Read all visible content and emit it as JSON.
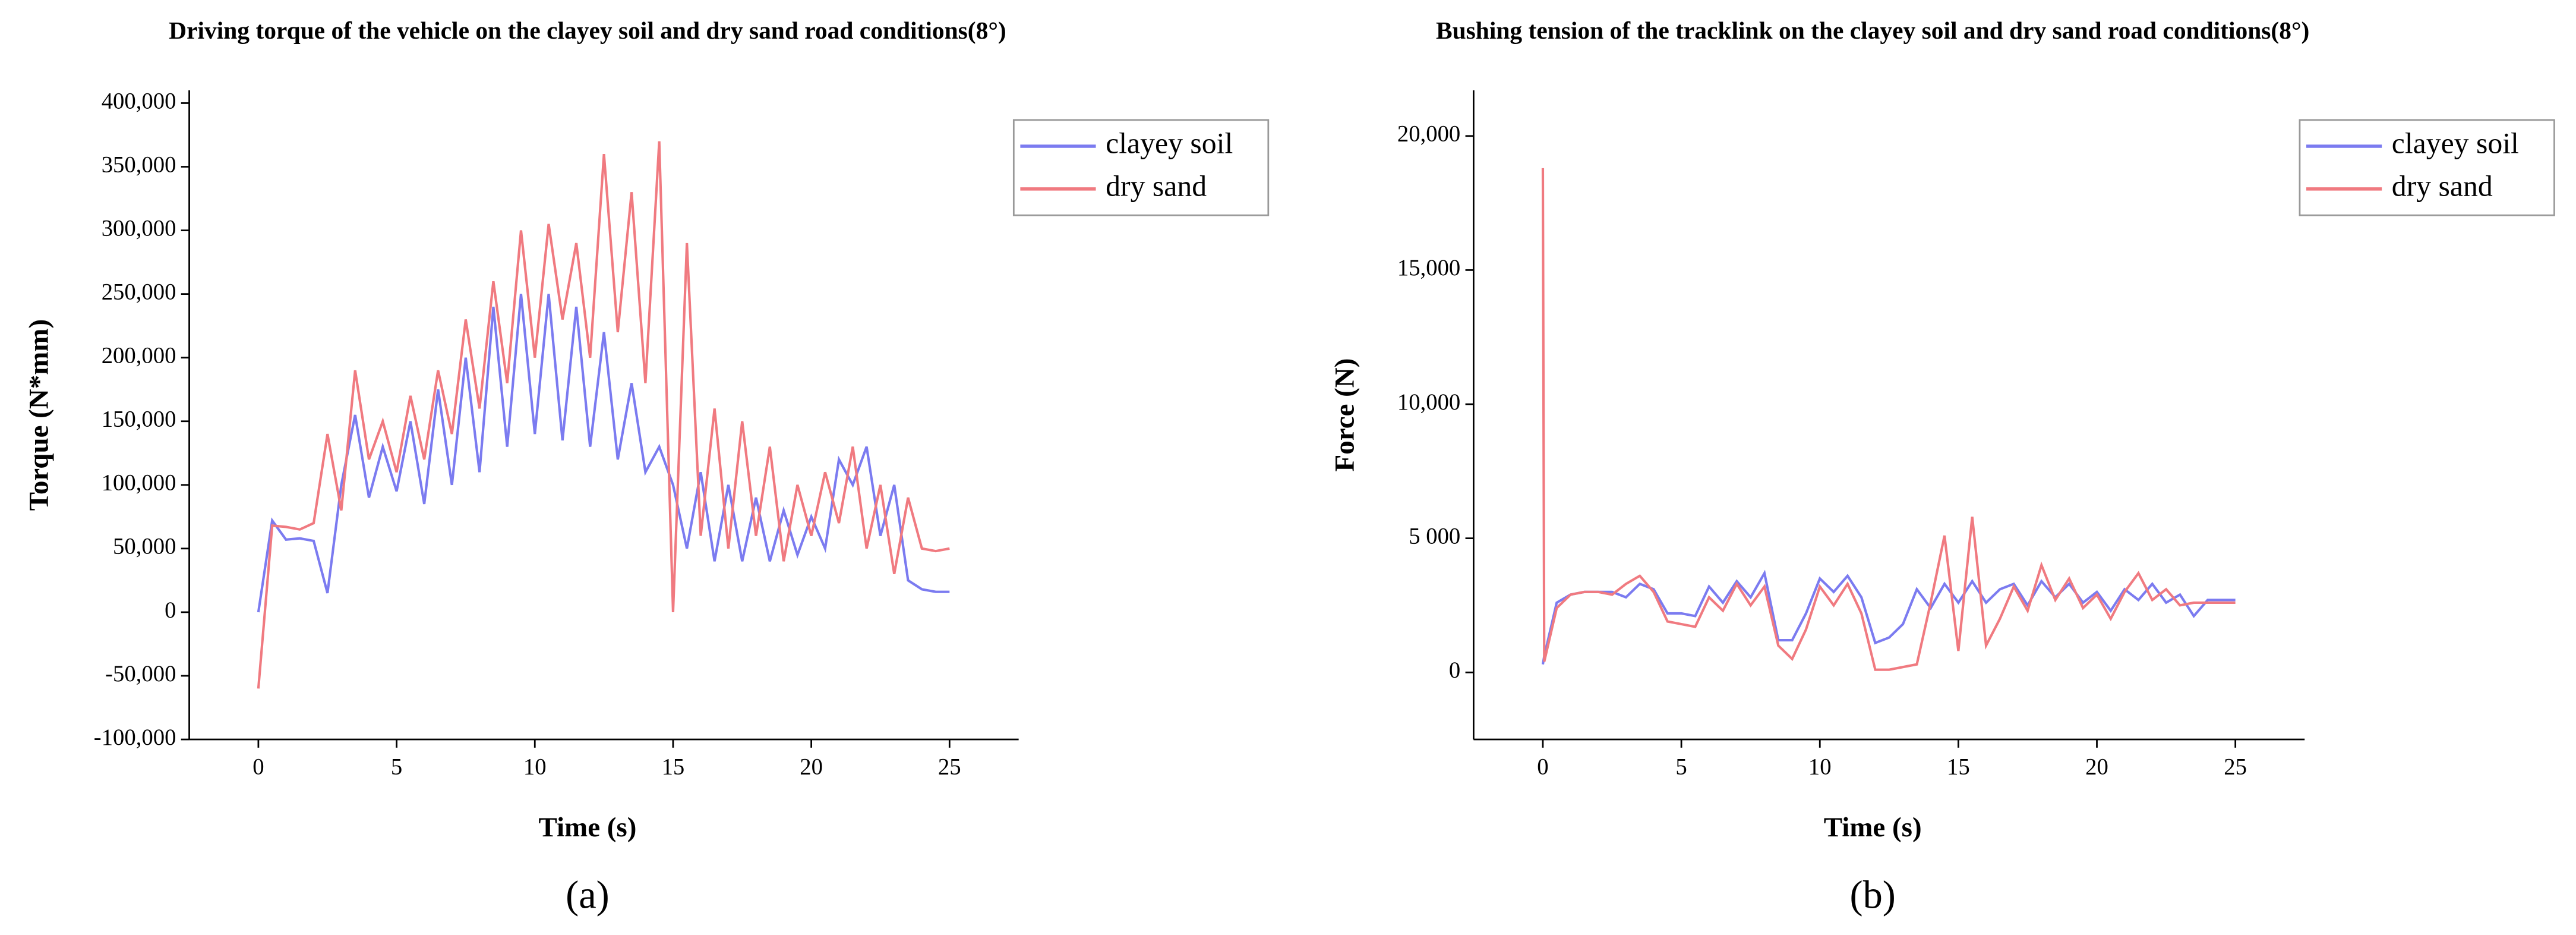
{
  "chart_data": [
    {
      "type": "line",
      "title": "Driving torque of the vehicle on the clayey soil and dry sand road conditions(8°)",
      "xlabel": "Time (s)",
      "ylabel": "Torque (N*mm)",
      "caption": "(a)",
      "legend": "upper right",
      "x": [
        0,
        0.5,
        1,
        1.5,
        2,
        2.5,
        3,
        3.5,
        4,
        4.5,
        5,
        5.5,
        6,
        6.5,
        7,
        7.5,
        8,
        8.5,
        9,
        9.5,
        10,
        10.5,
        11,
        11.5,
        12,
        12.5,
        13,
        13.5,
        14,
        14.5,
        15,
        15.5,
        16,
        16.5,
        17,
        17.5,
        18,
        18.5,
        19,
        19.5,
        20,
        20.5,
        21,
        21.5,
        22,
        22.5,
        23,
        23.5,
        24,
        24.5,
        25
      ],
      "series": [
        {
          "name": "clayey soil",
          "color": "#7b7bf0",
          "values": [
            0,
            72000,
            57000,
            58000,
            56000,
            15000,
            100000,
            155000,
            90000,
            130000,
            95000,
            150000,
            85000,
            175000,
            100000,
            200000,
            110000,
            240000,
            130000,
            250000,
            140000,
            250000,
            135000,
            240000,
            130000,
            220000,
            120000,
            180000,
            110000,
            130000,
            100000,
            50000,
            110000,
            40000,
            100000,
            40000,
            90000,
            40000,
            80000,
            45000,
            75000,
            50000,
            120000,
            100000,
            130000,
            60000,
            100000,
            25000,
            18000,
            16000,
            16000
          ]
        },
        {
          "name": "dry sand",
          "color": "#f07a80",
          "values": [
            -60000,
            68000,
            67000,
            65000,
            70000,
            140000,
            80000,
            190000,
            120000,
            150000,
            110000,
            170000,
            120000,
            190000,
            140000,
            230000,
            160000,
            260000,
            180000,
            300000,
            200000,
            305000,
            230000,
            290000,
            200000,
            360000,
            220000,
            330000,
            180000,
            370000,
            0,
            290000,
            60000,
            160000,
            50000,
            150000,
            60000,
            130000,
            40000,
            100000,
            60000,
            110000,
            70000,
            130000,
            50000,
            100000,
            30000,
            90000,
            50000,
            48000,
            50000
          ]
        }
      ],
      "xlim": [
        -2.5,
        27.5
      ],
      "xticks": [
        0,
        5,
        10,
        15,
        20,
        25
      ],
      "ylim": [
        -100000,
        410000
      ],
      "yticks": [
        {
          "value": -100000,
          "label": "-100,000"
        },
        {
          "value": -50000,
          "label": "-50,000"
        },
        0,
        {
          "value": 50000,
          "label": "50,000"
        },
        {
          "value": 100000,
          "label": "100,000"
        },
        {
          "value": 150000,
          "label": "150,000"
        },
        {
          "value": 200000,
          "label": "200,000"
        },
        {
          "value": 250000,
          "label": "250,000"
        },
        {
          "value": 300000,
          "label": "300,000"
        },
        {
          "value": 350000,
          "label": "350,000"
        },
        {
          "value": 400000,
          "label": "400,000"
        }
      ]
    },
    {
      "type": "line",
      "title": "Bushing tension of the tracklink on the clayey soil and dry sand road conditions(8°)",
      "xlabel": "Time (s)",
      "ylabel": "Force (N)",
      "caption": "(b)",
      "legend": "upper right",
      "x": [
        0,
        0.05,
        0.5,
        1,
        1.5,
        2,
        2.5,
        3,
        3.5,
        4,
        4.5,
        5,
        5.5,
        6,
        6.5,
        7,
        7.5,
        8,
        8.5,
        9,
        9.5,
        10,
        10.5,
        11,
        11.5,
        12,
        12.5,
        13,
        13.5,
        14,
        14.5,
        15,
        15.5,
        16,
        16.5,
        17,
        17.5,
        18,
        18.5,
        19,
        19.5,
        20,
        20.5,
        21,
        21.5,
        22,
        22.5,
        23,
        23.5,
        24,
        24.5,
        25
      ],
      "series": [
        {
          "name": "clayey soil",
          "color": "#7b7bf0",
          "values": [
            300,
            600,
            2600,
            2900,
            3000,
            3000,
            3000,
            2800,
            3300,
            3100,
            2200,
            2200,
            2100,
            3200,
            2600,
            3400,
            2800,
            3700,
            1200,
            1200,
            2200,
            3500,
            3000,
            3600,
            2800,
            1100,
            1300,
            1800,
            3100,
            2400,
            3300,
            2600,
            3400,
            2600,
            3100,
            3300,
            2500,
            3400,
            2800,
            3300,
            2600,
            3000,
            2300,
            3100,
            2700,
            3300,
            2600,
            2900,
            2100,
            2700,
            2700,
            2700
          ]
        },
        {
          "name": "dry sand",
          "color": "#f07a80",
          "values": [
            18800,
            400,
            2400,
            2900,
            3000,
            3000,
            2900,
            3300,
            3600,
            3000,
            1900,
            1800,
            1700,
            2800,
            2300,
            3300,
            2500,
            3200,
            1000,
            500,
            1600,
            3200,
            2500,
            3300,
            2200,
            100,
            100,
            200,
            300,
            2600,
            5100,
            800,
            5800,
            1000,
            2000,
            3200,
            2300,
            4000,
            2700,
            3500,
            2400,
            2900,
            2000,
            3000,
            3700,
            2700,
            3100,
            2500,
            2600,
            2600,
            2600,
            2600
          ]
        }
      ],
      "xlim": [
        -2.5,
        27.5
      ],
      "xticks": [
        0,
        5,
        10,
        15,
        20,
        25
      ],
      "ylim": [
        -2500,
        21700
      ],
      "yticks": [
        0,
        {
          "value": 5000,
          "label": "5 000"
        },
        {
          "value": 10000,
          "label": "10,000"
        },
        {
          "value": 15000,
          "label": "15,000"
        },
        {
          "value": 20000,
          "label": "20,000"
        }
      ]
    }
  ]
}
